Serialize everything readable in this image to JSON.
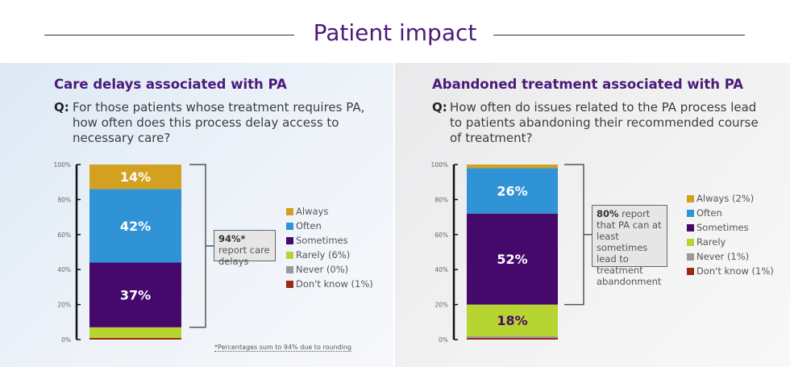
{
  "page_title": "Patient impact",
  "colors": {
    "Always": "#d4a020",
    "Often": "#2f93d6",
    "Sometimes": "#45086b",
    "Rarely": "#b7d531",
    "Never": "#9a9a9a",
    "Don't know": "#9a2a12",
    "title": "#4a1a78"
  },
  "chart_data": [
    {
      "type": "bar",
      "stacked": true,
      "title": "Care delays associated with PA",
      "question_prefix": "Q:",
      "question": "For those patients whose treatment requires PA, how often does this process delay access to necessary care?",
      "ylim": [
        0,
        100
      ],
      "yticks": [
        "0%",
        "20%",
        "40%",
        "60%",
        "80%",
        "100%"
      ],
      "series": [
        {
          "name": "Don't know",
          "value": 1,
          "legend": "Don't know (1%)"
        },
        {
          "name": "Never",
          "value": 0,
          "legend": "Never (0%)"
        },
        {
          "name": "Rarely",
          "value": 6,
          "legend": "Rarely (6%)"
        },
        {
          "name": "Sometimes",
          "value": 37,
          "label": "37%",
          "legend": "Sometimes"
        },
        {
          "name": "Often",
          "value": 42,
          "label": "42%",
          "legend": "Often"
        },
        {
          "name": "Always",
          "value": 14,
          "label": "14%",
          "legend": "Always"
        }
      ],
      "annotation_bold": "94%*",
      "annotation_text": " report care delays",
      "bracket_range": [
        7,
        100
      ],
      "footnote": "*Percentages sum to 94% due to rounding"
    },
    {
      "type": "bar",
      "stacked": true,
      "title": "Abandoned treatment associated with PA",
      "question_prefix": "Q:",
      "question": "How often do issues related to the PA process lead to patients abandoning their recommended course of treatment?",
      "ylim": [
        0,
        100
      ],
      "yticks": [
        "0%",
        "20%",
        "40%",
        "60%",
        "80%",
        "100%"
      ],
      "series": [
        {
          "name": "Don't know",
          "value": 1,
          "legend": "Don't know (1%)"
        },
        {
          "name": "Never",
          "value": 1,
          "legend": "Never (1%)"
        },
        {
          "name": "Rarely",
          "value": 18,
          "label": "18%",
          "legend": "Rarely"
        },
        {
          "name": "Sometimes",
          "value": 52,
          "label": "52%",
          "legend": "Sometimes"
        },
        {
          "name": "Often",
          "value": 26,
          "label": "26%",
          "legend": "Often"
        },
        {
          "name": "Always",
          "value": 2,
          "legend": "Always (2%)"
        }
      ],
      "annotation_bold": "80%",
      "annotation_text": " report that PA can at least sometimes lead to treatment abandonment",
      "bracket_range": [
        20,
        100
      ]
    }
  ]
}
